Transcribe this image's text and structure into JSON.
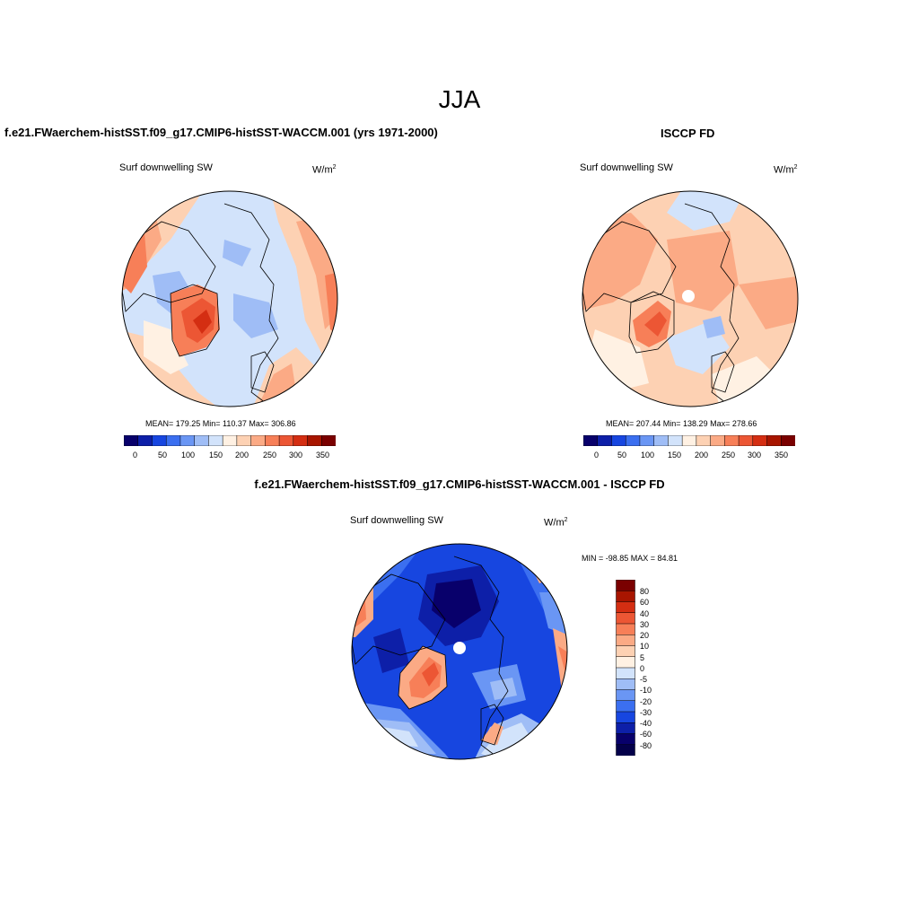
{
  "season": "JJA",
  "colors": {
    "palette": [
      "#08006b",
      "#0d1fa8",
      "#1746e0",
      "#3b6ff0",
      "#6a96f4",
      "#9fbdf6",
      "#d2e3fb",
      "#fff1e3",
      "#fdd1b3",
      "#fbaa85",
      "#f77f58",
      "#ec5634",
      "#d42e12",
      "#a81500",
      "#7a0000"
    ]
  },
  "panels": [
    {
      "id": "model",
      "title": "f.e21.FWaerchem-histSST.f09_g17.CMIP6-histSST-WACCM.001 (yrs 1971-2000)",
      "variable": "Surf downwelling SW",
      "units": "W/m",
      "units_sup": "2",
      "stats": "MEAN= 179.25  Min= 110.37  Max= 306.86",
      "colorbar_ticks": [
        "0",
        "50",
        "100",
        "150",
        "200",
        "250",
        "300",
        "350"
      ]
    },
    {
      "id": "obs",
      "title": "ISCCP FD",
      "variable": "Surf downwelling SW",
      "units": "W/m",
      "units_sup": "2",
      "stats": "MEAN= 207.44  Min= 138.29  Max= 278.66",
      "colorbar_ticks": [
        "0",
        "50",
        "100",
        "150",
        "200",
        "250",
        "300",
        "350"
      ]
    },
    {
      "id": "diff",
      "title": "f.e21.FWaerchem-histSST.f09_g17.CMIP6-histSST-WACCM.001 - ISCCP FD",
      "variable": "Surf downwelling SW",
      "units": "W/m",
      "units_sup": "2",
      "stats": "MIN = -98.85 MAX =  84.81",
      "colorbar_ticks": [
        "80",
        "60",
        "40",
        "30",
        "20",
        "10",
        "5",
        "0",
        "-5",
        "-10",
        "-20",
        "-30",
        "-40",
        "-60",
        "-80"
      ]
    }
  ]
}
